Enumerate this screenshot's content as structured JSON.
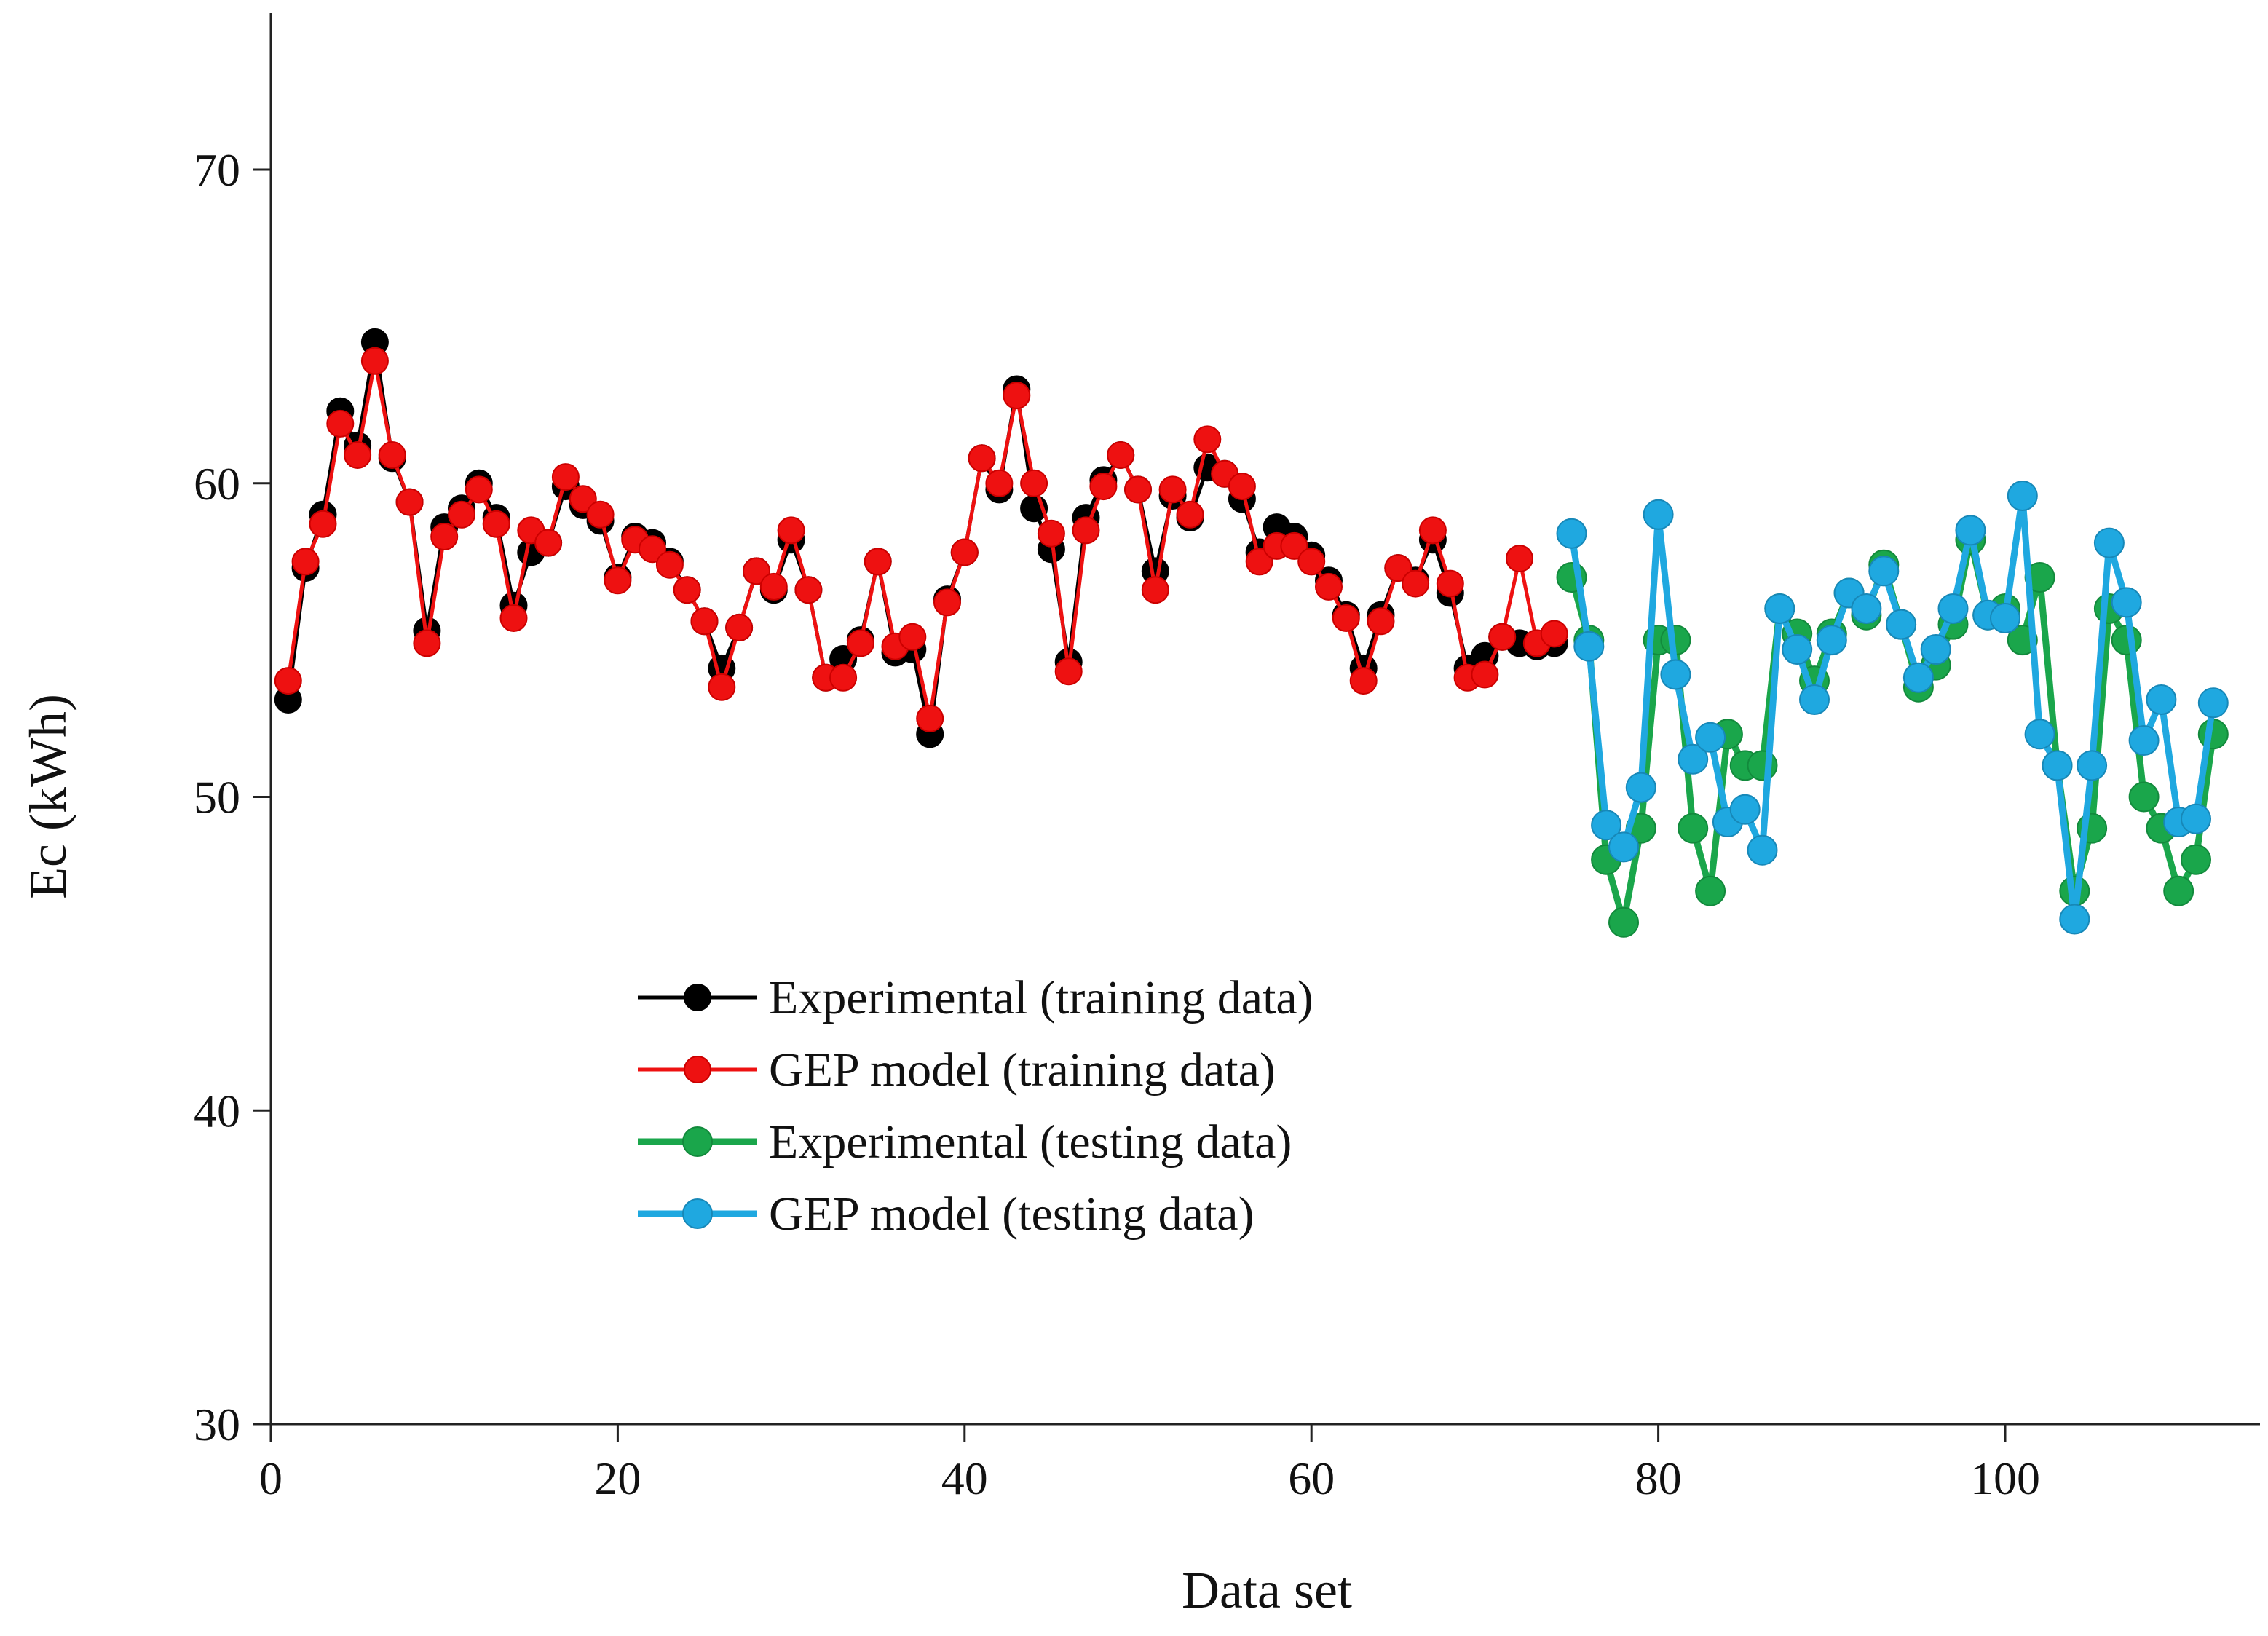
{
  "chart_data": {
    "type": "line",
    "xlabel": "Data set",
    "ylabel": "Ec (kWh)",
    "xlim": [
      0,
      115
    ],
    "ylim": [
      30,
      75
    ],
    "x_ticks": [
      0,
      20,
      40,
      60,
      80,
      100
    ],
    "y_ticks": [
      30,
      40,
      50,
      60,
      70
    ],
    "grid": false,
    "legend_position": "center",
    "series": [
      {
        "name": "Experimental (training data)",
        "color": "#000000",
        "x": [
          1,
          2,
          3,
          4,
          5,
          6,
          7,
          8,
          9,
          10,
          11,
          12,
          13,
          14,
          15,
          16,
          17,
          18,
          19,
          20,
          21,
          22,
          23,
          24,
          25,
          26,
          27,
          28,
          29,
          30,
          31,
          32,
          33,
          34,
          35,
          36,
          37,
          38,
          39,
          40,
          41,
          42,
          43,
          44,
          45,
          46,
          47,
          48,
          49,
          50,
          51,
          52,
          53,
          54,
          55,
          56,
          57,
          58,
          59,
          60,
          61,
          62,
          63,
          64,
          65,
          66,
          67,
          68,
          69,
          70,
          71,
          72,
          73,
          74
        ],
        "values": [
          53.1,
          57.3,
          59,
          62.3,
          61.2,
          64.5,
          60.8,
          59.4,
          55.3,
          58.6,
          59.2,
          60,
          58.9,
          56.1,
          57.8,
          58.1,
          59.9,
          59.3,
          58.8,
          57,
          58.3,
          58.1,
          57.5,
          56.6,
          55.6,
          54.1,
          55.4,
          57.2,
          56.6,
          58.2,
          56.6,
          53.8,
          54.4,
          55,
          57.5,
          54.6,
          54.7,
          52,
          56.3,
          57.8,
          60.8,
          59.8,
          63,
          59.2,
          57.9,
          54.3,
          58.9,
          60.1,
          60.9,
          59.8,
          57.2,
          59.6,
          58.9,
          60.5,
          60.3,
          59.5,
          57.8,
          58.6,
          58.3,
          57.7,
          56.9,
          55.8,
          54.1,
          55.8,
          57.3,
          56.9,
          58.2,
          56.5,
          54.1,
          54.5,
          55.1,
          54.9,
          54.8,
          54.9
        ]
      },
      {
        "name": "GEP model (training data)",
        "color": "#ee1111",
        "x": [
          1,
          2,
          3,
          4,
          5,
          6,
          7,
          8,
          9,
          10,
          11,
          12,
          13,
          14,
          15,
          16,
          17,
          18,
          19,
          20,
          21,
          22,
          23,
          24,
          25,
          26,
          27,
          28,
          29,
          30,
          31,
          32,
          33,
          34,
          35,
          36,
          37,
          38,
          39,
          40,
          41,
          42,
          43,
          44,
          45,
          46,
          47,
          48,
          49,
          50,
          51,
          52,
          53,
          54,
          55,
          56,
          57,
          58,
          59,
          60,
          61,
          62,
          63,
          64,
          65,
          66,
          67,
          68,
          69,
          70,
          71,
          72,
          73,
          74
        ],
        "values": [
          53.7,
          57.5,
          58.7,
          61.9,
          60.9,
          63.9,
          60.9,
          59.4,
          54.9,
          58.3,
          59,
          59.8,
          58.7,
          55.7,
          58.5,
          58.1,
          60.2,
          59.5,
          59,
          56.9,
          58.2,
          57.9,
          57.4,
          56.6,
          55.6,
          53.5,
          55.4,
          57.2,
          56.7,
          58.5,
          56.6,
          53.8,
          53.8,
          54.9,
          57.5,
          54.8,
          55.1,
          52.5,
          56.2,
          57.8,
          60.8,
          60,
          62.8,
          60,
          58.4,
          54,
          58.5,
          59.9,
          60.9,
          59.8,
          56.6,
          59.8,
          59,
          61.4,
          60.3,
          59.9,
          57.5,
          58,
          58,
          57.5,
          56.7,
          55.7,
          53.7,
          55.6,
          57.3,
          56.8,
          58.5,
          56.8,
          53.8,
          53.9,
          55.1,
          57.6,
          54.9,
          55.2
        ]
      },
      {
        "name": "Experimental (testing data)",
        "color": "#1aa64b",
        "x": [
          75,
          76,
          77,
          78,
          79,
          80,
          81,
          82,
          83,
          84,
          85,
          86,
          87,
          88,
          89,
          90,
          91,
          92,
          93,
          94,
          95,
          96,
          97,
          98,
          99,
          100,
          101,
          102,
          103,
          104,
          105,
          106,
          107,
          108,
          109,
          110,
          111,
          112
        ],
        "values": [
          57,
          55,
          48,
          46,
          49,
          55,
          55,
          49,
          47,
          52,
          51,
          51,
          56,
          55.2,
          53.7,
          55.2,
          56.5,
          55.8,
          57.4,
          55.5,
          53.5,
          54.2,
          55.5,
          58.2,
          55.8,
          56,
          55,
          57,
          51,
          47,
          49,
          56,
          55,
          50,
          49,
          47,
          48,
          52
        ]
      },
      {
        "name": "GEP model (testing data)",
        "color": "#1fa8e0",
        "x": [
          75,
          76,
          77,
          78,
          79,
          80,
          81,
          82,
          83,
          84,
          85,
          86,
          87,
          88,
          89,
          90,
          91,
          92,
          93,
          94,
          95,
          96,
          97,
          98,
          99,
          100,
          101,
          102,
          103,
          104,
          105,
          106,
          107,
          108,
          109,
          110,
          111,
          112
        ],
        "values": [
          58.4,
          54.8,
          49.1,
          48.4,
          50.3,
          59,
          53.9,
          51.2,
          51.9,
          49.2,
          49.6,
          48.3,
          56,
          54.7,
          53.1,
          55,
          56.5,
          56,
          57.2,
          55.5,
          53.8,
          54.7,
          56,
          58.5,
          55.8,
          55.7,
          59.6,
          52,
          51,
          46.1,
          51,
          58.1,
          56.2,
          51.8,
          53.1,
          49.2,
          49.3,
          53
        ]
      }
    ]
  }
}
